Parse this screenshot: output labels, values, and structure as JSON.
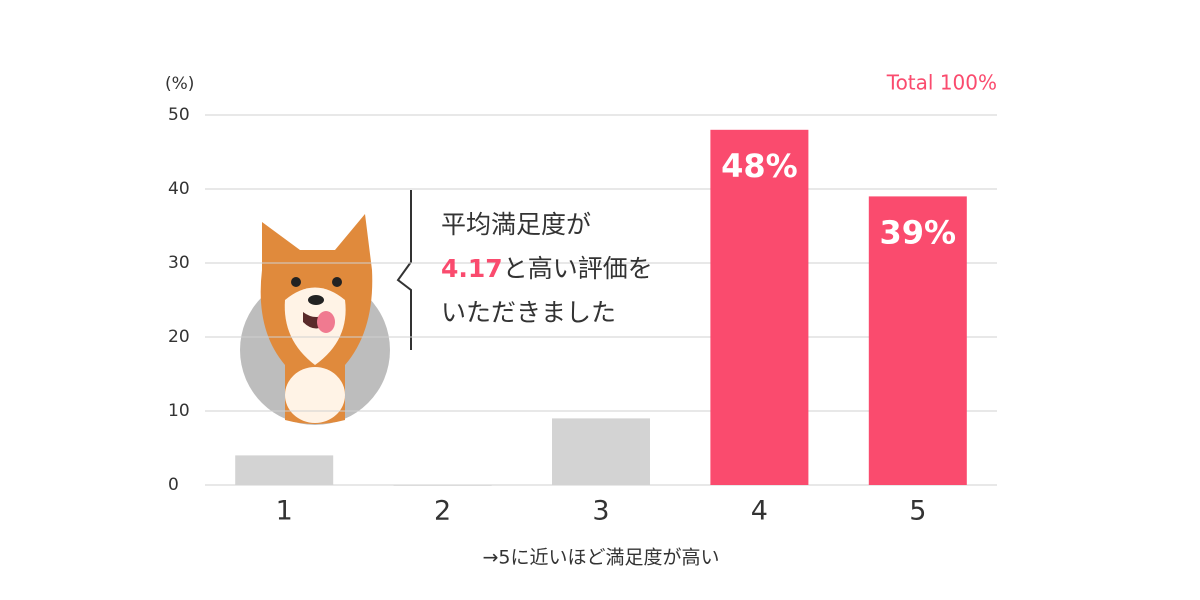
{
  "chart_data": {
    "type": "bar",
    "y_unit": "(%)",
    "total_note": "Total 100%",
    "x_label": "→5に近いほど満足度が高い",
    "categories": [
      "1",
      "2",
      "3",
      "4",
      "5"
    ],
    "values": [
      4,
      0,
      9,
      48,
      39
    ],
    "value_labels": [
      null,
      null,
      null,
      "48%",
      "39%"
    ],
    "colors": [
      "#d3d3d3",
      "#d3d3d3",
      "#d3d3d3",
      "#fa4b6e",
      "#fa4b6e"
    ],
    "ylim": [
      0,
      50
    ],
    "yticks": [
      0,
      10,
      20,
      30,
      40,
      50
    ],
    "grid": true,
    "annotation": {
      "lines": [
        [
          {
            "text": "平均満足度が",
            "highlight": false
          }
        ],
        [
          {
            "text": "4.17",
            "highlight": true
          },
          {
            "text": "と高い評価を",
            "highlight": false
          }
        ],
        [
          {
            "text": "いただきました",
            "highlight": false
          }
        ]
      ]
    }
  }
}
